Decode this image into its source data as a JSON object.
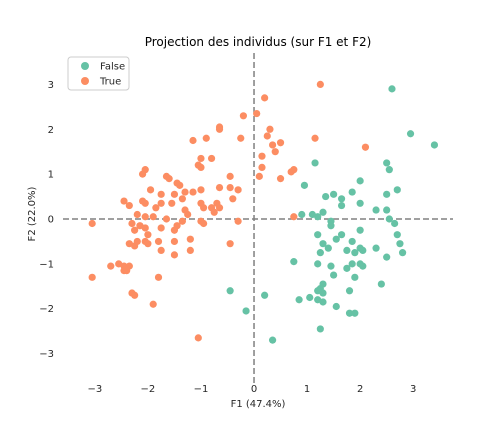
{
  "chart_data": {
    "type": "scatter",
    "title": "Projection des individus (sur F1 et F2)",
    "xlabel": "F1 (47.4%)",
    "ylabel": "F2 (22.0%)",
    "xlim": [
      -3.6,
      3.75
    ],
    "ylim": [
      -3.7,
      3.7
    ],
    "x_ticks": [
      -3,
      -2,
      -1,
      0,
      1,
      2,
      3
    ],
    "y_ticks": [
      -3,
      -2,
      -1,
      0,
      1,
      2,
      3
    ],
    "grid": false,
    "reference_lines": {
      "x": 0,
      "y": 0,
      "style": "dashed"
    },
    "legend_position": "top-left",
    "series": [
      {
        "name": "False",
        "color": "#66c2a5",
        "points": [
          [
            2.6,
            2.9
          ],
          [
            2.95,
            1.9
          ],
          [
            3.4,
            1.65
          ],
          [
            2.5,
            1.25
          ],
          [
            2.55,
            1.1
          ],
          [
            1.15,
            1.25
          ],
          [
            2.0,
            0.85
          ],
          [
            0.95,
            0.75
          ],
          [
            1.85,
            0.6
          ],
          [
            2.7,
            0.65
          ],
          [
            2.5,
            0.55
          ],
          [
            1.35,
            0.5
          ],
          [
            1.5,
            0.55
          ],
          [
            1.65,
            0.45
          ],
          [
            1.65,
            0.3
          ],
          [
            2.0,
            0.35
          ],
          [
            2.3,
            0.2
          ],
          [
            2.5,
            0.2
          ],
          [
            0.9,
            0.1
          ],
          [
            1.1,
            0.1
          ],
          [
            1.2,
            0.05
          ],
          [
            1.3,
            0.15
          ],
          [
            2.55,
            0.0
          ],
          [
            2.65,
            -0.1
          ],
          [
            1.45,
            -0.05
          ],
          [
            1.45,
            -0.15
          ],
          [
            2.0,
            -0.25
          ],
          [
            2.7,
            -0.35
          ],
          [
            1.2,
            -0.35
          ],
          [
            1.65,
            -0.35
          ],
          [
            1.85,
            -0.5
          ],
          [
            1.55,
            -0.45
          ],
          [
            1.3,
            -0.55
          ],
          [
            1.4,
            -0.65
          ],
          [
            2.3,
            -0.65
          ],
          [
            2.75,
            -0.55
          ],
          [
            2.0,
            -0.65
          ],
          [
            1.25,
            -0.75
          ],
          [
            1.75,
            -0.7
          ],
          [
            1.9,
            -0.75
          ],
          [
            2.05,
            -0.7
          ],
          [
            2.8,
            -0.75
          ],
          [
            2.5,
            -0.85
          ],
          [
            0.75,
            -0.95
          ],
          [
            1.2,
            -1.0
          ],
          [
            1.45,
            -1.05
          ],
          [
            1.85,
            -1.0
          ],
          [
            2.05,
            -1.05
          ],
          [
            2.0,
            -1.0
          ],
          [
            1.75,
            -1.1
          ],
          [
            1.5,
            -1.25
          ],
          [
            1.9,
            -1.3
          ],
          [
            1.3,
            -1.45
          ],
          [
            2.4,
            -1.45
          ],
          [
            1.25,
            -1.55
          ],
          [
            1.2,
            -1.6
          ],
          [
            1.3,
            -1.65
          ],
          [
            -0.45,
            -1.6
          ],
          [
            1.8,
            -1.6
          ],
          [
            0.2,
            -1.7
          ],
          [
            1.05,
            -1.75
          ],
          [
            1.2,
            -1.8
          ],
          [
            0.85,
            -1.8
          ],
          [
            1.3,
            -1.85
          ],
          [
            1.55,
            -1.95
          ],
          [
            -0.15,
            -2.05
          ],
          [
            1.8,
            -2.1
          ],
          [
            1.9,
            -2.1
          ],
          [
            1.25,
            -2.45
          ],
          [
            0.35,
            -2.7
          ]
        ]
      },
      {
        "name": "True",
        "color": "#fc8d62",
        "points": [
          [
            1.25,
            3.0
          ],
          [
            0.2,
            2.7
          ],
          [
            -0.2,
            2.3
          ],
          [
            0.05,
            2.35
          ],
          [
            0.3,
            2.0
          ],
          [
            -0.65,
            2.05
          ],
          [
            -0.65,
            2.0
          ],
          [
            -0.25,
            1.8
          ],
          [
            0.25,
            1.85
          ],
          [
            -1.15,
            1.75
          ],
          [
            -0.9,
            1.8
          ],
          [
            0.5,
            1.7
          ],
          [
            1.15,
            1.8
          ],
          [
            0.35,
            1.65
          ],
          [
            0.4,
            1.5
          ],
          [
            2.1,
            1.6
          ],
          [
            -1.0,
            1.35
          ],
          [
            -0.8,
            1.35
          ],
          [
            0.15,
            1.4
          ],
          [
            -1.05,
            1.2
          ],
          [
            -1.0,
            1.15
          ],
          [
            0.15,
            1.15
          ],
          [
            -2.05,
            1.1
          ],
          [
            0.75,
            1.1
          ],
          [
            0.7,
            1.05
          ],
          [
            -2.1,
            1.0
          ],
          [
            -1.65,
            0.95
          ],
          [
            -1.6,
            0.9
          ],
          [
            0.1,
            0.95
          ],
          [
            0.5,
            0.9
          ],
          [
            -0.45,
            0.95
          ],
          [
            -1.45,
            0.8
          ],
          [
            -1.4,
            0.75
          ],
          [
            -1.3,
            0.6
          ],
          [
            -1.0,
            0.65
          ],
          [
            -0.65,
            0.7
          ],
          [
            -0.45,
            0.7
          ],
          [
            -0.3,
            0.65
          ],
          [
            -1.95,
            0.65
          ],
          [
            -1.5,
            0.55
          ],
          [
            -1.75,
            0.55
          ],
          [
            -1.15,
            0.6
          ],
          [
            -1.35,
            0.45
          ],
          [
            -1.55,
            0.35
          ],
          [
            -0.4,
            0.45
          ],
          [
            -0.7,
            0.35
          ],
          [
            -0.65,
            0.25
          ],
          [
            -0.8,
            0.25
          ],
          [
            -1.0,
            0.35
          ],
          [
            -2.45,
            0.4
          ],
          [
            -2.35,
            0.3
          ],
          [
            -2.1,
            0.4
          ],
          [
            -2.05,
            0.35
          ],
          [
            -1.75,
            0.35
          ],
          [
            -1.85,
            0.25
          ],
          [
            -1.3,
            0.2
          ],
          [
            -0.95,
            0.25
          ],
          [
            -0.75,
            0.15
          ],
          [
            -2.2,
            0.1
          ],
          [
            -2.05,
            0.05
          ],
          [
            -1.9,
            0.05
          ],
          [
            -1.65,
            0.0
          ],
          [
            -1.35,
            -0.05
          ],
          [
            -1.25,
            0.1
          ],
          [
            -1.45,
            -0.15
          ],
          [
            -1.0,
            -0.05
          ],
          [
            -0.95,
            -0.1
          ],
          [
            -0.3,
            -0.05
          ],
          [
            0.75,
            0.05
          ],
          [
            -3.05,
            -0.1
          ],
          [
            -2.3,
            -0.1
          ],
          [
            -2.15,
            -0.15
          ],
          [
            -2.05,
            -0.2
          ],
          [
            -1.75,
            -0.2
          ],
          [
            -1.5,
            -0.25
          ],
          [
            -2.25,
            -0.25
          ],
          [
            -2.0,
            -0.35
          ],
          [
            -2.05,
            -0.5
          ],
          [
            -1.8,
            -0.5
          ],
          [
            -1.5,
            -0.5
          ],
          [
            -1.2,
            -0.45
          ],
          [
            -2.35,
            -0.55
          ],
          [
            -2.2,
            -0.5
          ],
          [
            -2.25,
            -0.6
          ],
          [
            -2.0,
            -0.55
          ],
          [
            -1.75,
            -0.7
          ],
          [
            -1.5,
            -0.8
          ],
          [
            -1.2,
            -0.7
          ],
          [
            -2.55,
            -1.0
          ],
          [
            -2.7,
            -1.05
          ],
          [
            -2.45,
            -1.05
          ],
          [
            -2.35,
            -1.05
          ],
          [
            -2.45,
            -1.15
          ],
          [
            -2.4,
            -1.15
          ],
          [
            -1.8,
            -1.3
          ],
          [
            -3.05,
            -1.3
          ],
          [
            -2.3,
            -1.65
          ],
          [
            -2.25,
            -1.7
          ],
          [
            -1.9,
            -1.9
          ],
          [
            -0.45,
            -0.55
          ],
          [
            -1.05,
            -2.65
          ]
        ]
      }
    ]
  }
}
